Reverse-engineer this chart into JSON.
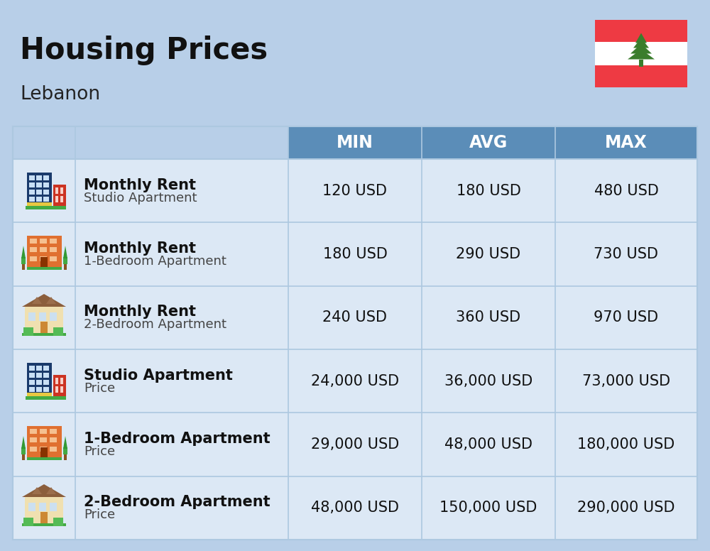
{
  "title": "Housing Prices",
  "subtitle": "Lebanon",
  "background_color": "#b8cfe8",
  "header_color": "#5b8db8",
  "header_text_color": "#ffffff",
  "row_bg": "#dce8f5",
  "separator_color": "#adc8e0",
  "headers": [
    "",
    "",
    "MIN",
    "AVG",
    "MAX"
  ],
  "rows": [
    {
      "icon": "office_blue",
      "label_bold": "Monthly Rent",
      "label_light": "Studio Apartment",
      "min": "120 USD",
      "avg": "180 USD",
      "max": "480 USD"
    },
    {
      "icon": "apartment_orange",
      "label_bold": "Monthly Rent",
      "label_light": "1-Bedroom Apartment",
      "min": "180 USD",
      "avg": "290 USD",
      "max": "730 USD"
    },
    {
      "icon": "house_beige",
      "label_bold": "Monthly Rent",
      "label_light": "2-Bedroom Apartment",
      "min": "240 USD",
      "avg": "360 USD",
      "max": "970 USD"
    },
    {
      "icon": "office_blue",
      "label_bold": "Studio Apartment",
      "label_light": "Price",
      "min": "24,000 USD",
      "avg": "36,000 USD",
      "max": "73,000 USD"
    },
    {
      "icon": "apartment_orange",
      "label_bold": "1-Bedroom Apartment",
      "label_light": "Price",
      "min": "29,000 USD",
      "avg": "48,000 USD",
      "max": "180,000 USD"
    },
    {
      "icon": "house_beige",
      "label_bold": "2-Bedroom Apartment",
      "label_light": "Price",
      "min": "48,000 USD",
      "avg": "150,000 USD",
      "max": "290,000 USD"
    }
  ],
  "title_fontsize": 30,
  "subtitle_fontsize": 19,
  "header_fontsize": 17,
  "cell_fontsize": 15,
  "label_bold_fontsize": 15,
  "label_light_fontsize": 13,
  "flag_red": "#ee3a43",
  "flag_white": "#ffffff",
  "flag_green": "#3a7d2c"
}
